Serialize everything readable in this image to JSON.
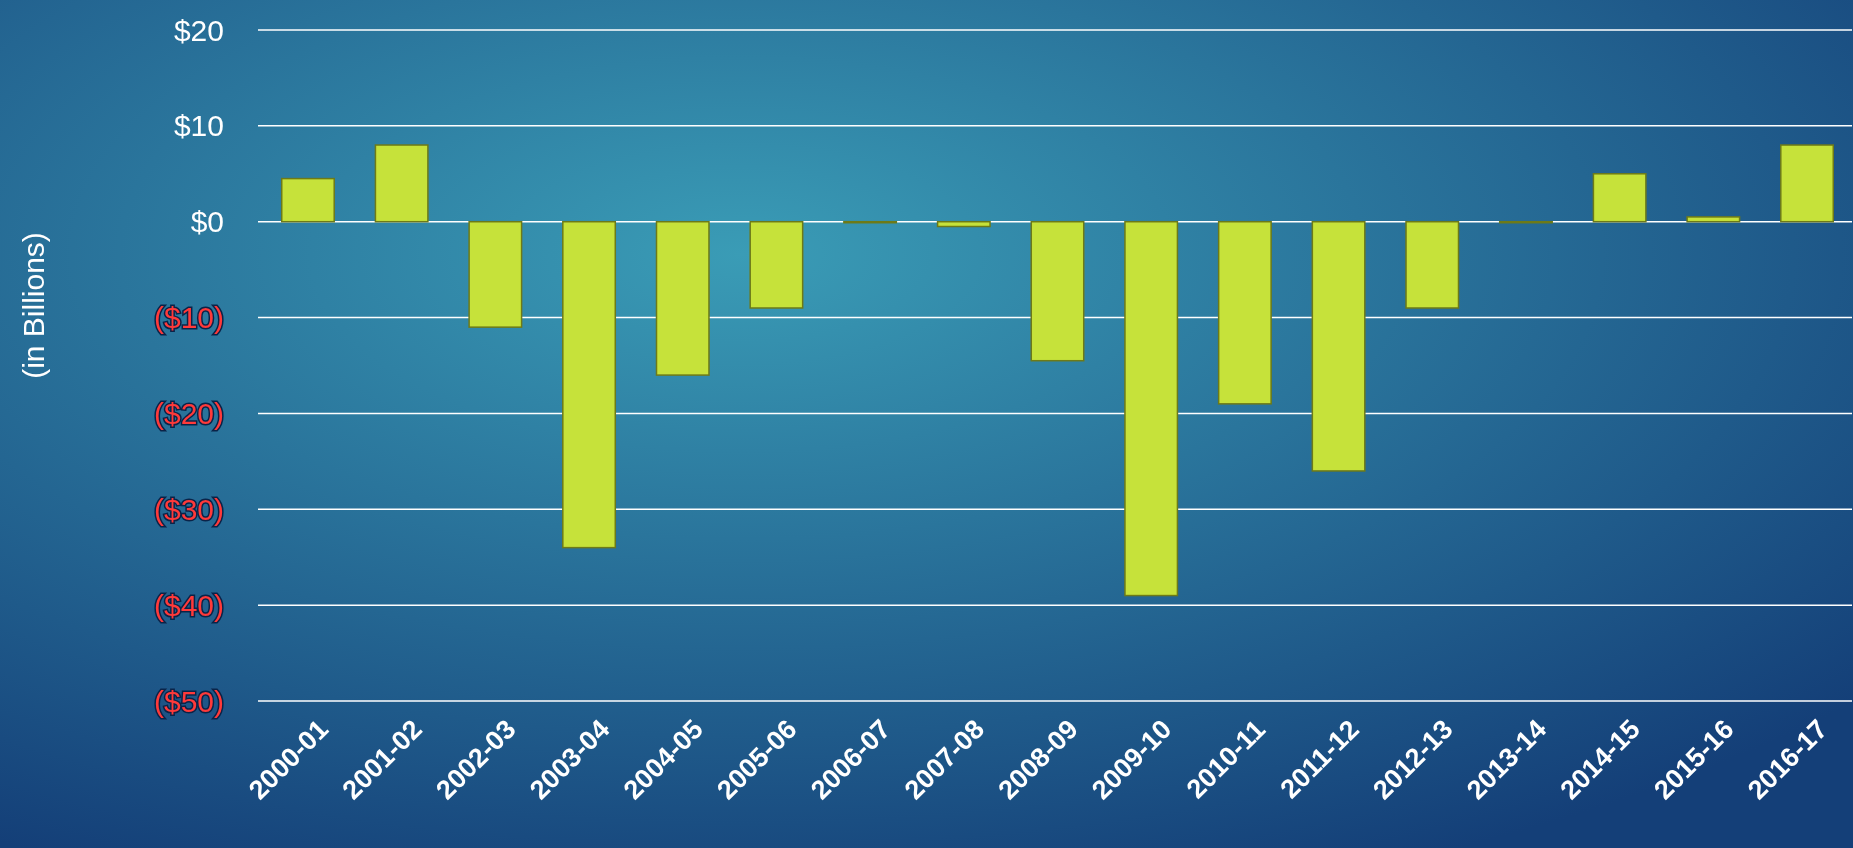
{
  "chart_data": {
    "type": "bar",
    "ylabel": "(in Billions)",
    "categories": [
      "2000-01",
      "2001-02",
      "2002-03",
      "2003-04",
      "2004-05",
      "2005-06",
      "2006-07",
      "2007-08",
      "2008-09",
      "2009-10",
      "2010-11",
      "2011-12",
      "2012-13",
      "2013-14",
      "2014-15",
      "2015-16",
      "2016-17"
    ],
    "values": [
      4.5,
      8,
      -11,
      -34,
      -16,
      -9,
      0,
      -0.5,
      -14.5,
      -39,
      -19,
      -26,
      -9,
      0,
      5,
      0.5,
      8
    ],
    "color": "#c6e23a",
    "ylim": [
      -50,
      20
    ],
    "yticks": [
      {
        "value": 20,
        "label": "$20"
      },
      {
        "value": 10,
        "label": "$10"
      },
      {
        "value": 0,
        "label": "$0"
      },
      {
        "value": -10,
        "label": "($10)"
      },
      {
        "value": -20,
        "label": "($20)"
      },
      {
        "value": -30,
        "label": "($30)"
      },
      {
        "value": -40,
        "label": "($40)"
      },
      {
        "value": -50,
        "label": "($50)"
      }
    ],
    "grid": "y"
  }
}
